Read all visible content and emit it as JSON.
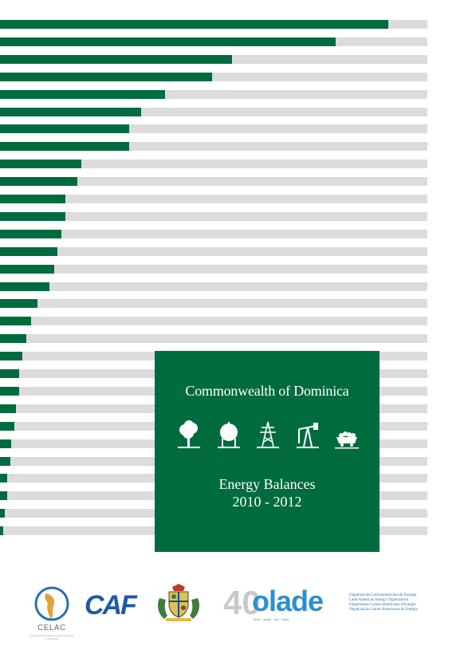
{
  "colors": {
    "accent_green": "#006b3f",
    "track_gray": "#dcdcdc",
    "panel_text": "#ffffff"
  },
  "bar_chart": {
    "type": "bar",
    "orientation": "horizontal",
    "axis_max": 1.0,
    "values": [
      0.909,
      0.786,
      0.542,
      0.496,
      0.386,
      0.33,
      0.302,
      0.302,
      0.19,
      0.181,
      0.153,
      0.153,
      0.143,
      0.134,
      0.127,
      0.116,
      0.088,
      0.073,
      0.062,
      0.052,
      0.045,
      0.045,
      0.037,
      0.034,
      0.026,
      0.024,
      0.017,
      0.017,
      0.011,
      0.007
    ]
  },
  "cover": {
    "country_title": "Commonwealth of Dominica",
    "heading_line1": "Energy Balances",
    "heading_line2": "2010 - 2012",
    "icons": [
      "tree-icon",
      "storage-tank-icon",
      "power-tower-icon",
      "oil-pump-icon",
      "coal-cart-icon"
    ]
  },
  "logos": {
    "celac_name": "CELAC",
    "celac_subtitle": "Comunidad de Estados Latinoamericanos y Caribeños",
    "caf_name": "CAF",
    "olade_number": "40",
    "olade_name": "olade",
    "olade_anniversary": "años · years · ans · anos",
    "olade_full_names": [
      "Organización Latinoamericana de Energía",
      "Latin American Energy Organization",
      "Organisation Latino-américaine d'Energie",
      "Organização Latino-Americana de Energia"
    ]
  }
}
